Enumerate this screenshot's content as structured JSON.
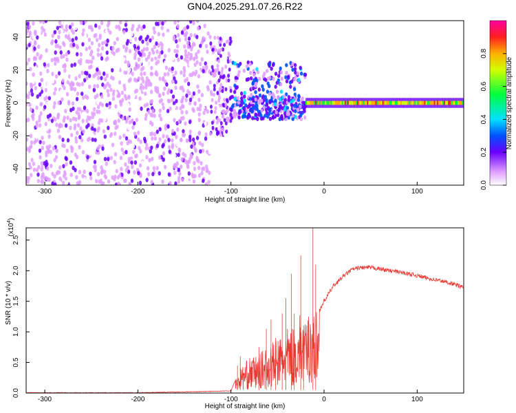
{
  "title": "GN04.2025.291.07.26.R22",
  "chart_data": [
    {
      "type": "heatmap",
      "xlabel": "Height of straight line (km)",
      "ylabel": "Frequency (Hz)",
      "xlim": [
        -320,
        150
      ],
      "ylim": [
        -50,
        50
      ],
      "xticks": [
        "-300",
        "-200",
        "-100",
        "0",
        "100"
      ],
      "yticks": [
        "-40",
        "-20",
        "0",
        "20",
        "40"
      ],
      "colorbar": {
        "label": "Normalized spectral amplitude",
        "range": [
          0,
          1
        ],
        "ticks": [
          "0.0",
          "0.2",
          "0.4",
          "0.6",
          "0.8"
        ]
      },
      "regions": [
        {
          "x_range": [
            -320,
            -122
          ],
          "freq_range": [
            -50,
            50
          ],
          "amplitude": "0.05-0.25 (noise)"
        },
        {
          "x_range": [
            -122,
            -100
          ],
          "freq_range": [
            -20,
            45
          ],
          "amplitude": "0.05-0.3"
        },
        {
          "x_range": [
            -100,
            -20
          ],
          "freq_range": [
            -10,
            30
          ],
          "amplitude": "0.2-0.45"
        },
        {
          "x_range": [
            -20,
            150
          ],
          "freq_range": [
            -2,
            2
          ],
          "amplitude": "0.6-1.0 (line near 0 Hz)"
        }
      ]
    },
    {
      "type": "line",
      "xlabel": "Height of straight line (km)",
      "ylabel": "SNR (10 * v/v)",
      "ylabel_multiplier": "(x10",
      "ylabel_exponent": "4",
      "xlim": [
        -320,
        150
      ],
      "ylim": [
        0,
        2.7
      ],
      "xticks": [
        "-300",
        "-200",
        "-100",
        "0",
        "100"
      ],
      "yticks": [
        "0.0",
        "0.5",
        "1.0",
        "1.5",
        "2.0",
        "2.5"
      ],
      "color": "#e83a34",
      "series": [
        {
          "x": [
            -320,
            -200,
            -100,
            -90,
            -80,
            -70,
            -60,
            -50,
            -40,
            -30,
            -25,
            -20,
            -15,
            -10,
            -5,
            0,
            10,
            20,
            30,
            40,
            50,
            60,
            70,
            80,
            90,
            100,
            110,
            120,
            130,
            140,
            150
          ],
          "y": [
            0.0,
            0.0,
            0.03,
            0.4,
            0.55,
            0.6,
            0.75,
            0.85,
            1.0,
            1.05,
            1.3,
            1.05,
            1.4,
            1.25,
            1.35,
            1.5,
            1.75,
            1.9,
            2.02,
            2.05,
            2.05,
            2.03,
            2.0,
            1.98,
            1.95,
            1.92,
            1.88,
            1.85,
            1.82,
            1.78,
            1.72
          ],
          "spikes": [
            {
              "x": -93,
              "y": 0.45
            },
            {
              "x": -90,
              "y": 0.6
            },
            {
              "x": -70,
              "y": 0.75
            },
            {
              "x": -62,
              "y": 1.05
            },
            {
              "x": -57,
              "y": 1.2
            },
            {
              "x": -52,
              "y": 0.9
            },
            {
              "x": -45,
              "y": 1.3
            },
            {
              "x": -41,
              "y": 1.55
            },
            {
              "x": -35,
              "y": 1.95
            },
            {
              "x": -32,
              "y": 1.3
            },
            {
              "x": -25,
              "y": 2.25
            },
            {
              "x": -22,
              "y": 1.1
            },
            {
              "x": -12,
              "y": 2.7
            },
            {
              "x": -9,
              "y": 2.1
            }
          ]
        }
      ]
    }
  ]
}
